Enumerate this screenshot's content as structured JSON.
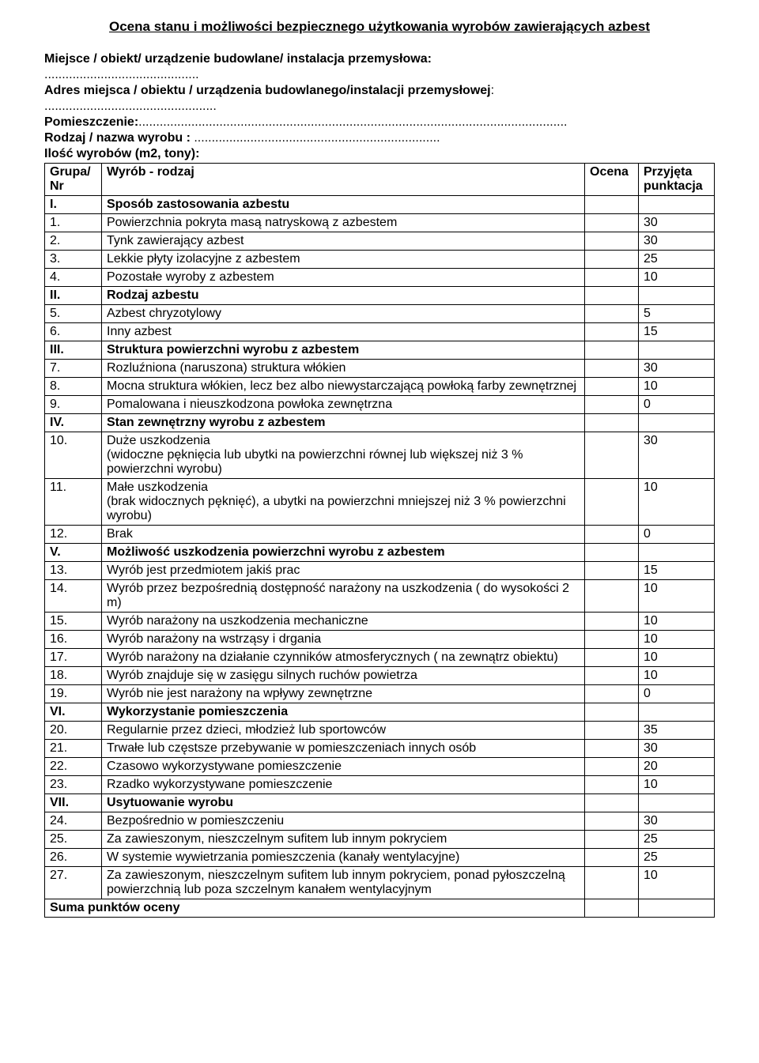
{
  "title": "Ocena stanu i możliwości bezpiecznego użytkowania wyrobów zawierających azbest",
  "meta": {
    "miejsce_label": "Miejsce / obiekt/ urządzenie budowlane/ instalacja przemysłowa:",
    "miejsce_dots": "............................................",
    "adres_label": "Adres miejsca / obiektu / urządzenia budowlanego/instalacji przemysłowej",
    "adres_dots": ":",
    "adres_line_dots": ".................................................",
    "pomieszczenie_label": "Pomieszczenie:",
    "pomieszczenie_dots": "..........................................................................................................................",
    "rodzaj_label": "Rodzaj / nazwa wyrobu : ",
    "rodzaj_dots": "......................................................................",
    "ilosc_label": "Ilość wyrobów (m2, tony):"
  },
  "headers": {
    "c1": "Grupa/\nNr",
    "c2": "Wyrób - rodzaj",
    "c3": "Ocena",
    "c4": "Przyjęta punktacja"
  },
  "rows": [
    {
      "type": "section",
      "nr": "I.",
      "text": "Sposób zastosowania azbestu"
    },
    {
      "type": "item",
      "nr": "1.",
      "text": "Powierzchnia pokryta masą natryskową z azbestem",
      "pts": "30"
    },
    {
      "type": "item",
      "nr": "2.",
      "text": "Tynk zawierający azbest",
      "pts": "30"
    },
    {
      "type": "item",
      "nr": "3.",
      "text": "Lekkie płyty izolacyjne z   azbestem",
      "pts": "25"
    },
    {
      "type": "item",
      "nr": "4.",
      "text": "Pozostałe wyroby z azbestem",
      "pts": "10"
    },
    {
      "type": "section",
      "nr": "II.",
      "text": "Rodzaj azbestu"
    },
    {
      "type": "item",
      "nr": "5.",
      "text": "Azbest chryzotylowy",
      "pts": "5"
    },
    {
      "type": "item",
      "nr": "6.",
      "text": "Inny azbest",
      "pts": "15"
    },
    {
      "type": "section",
      "nr": "III.",
      "text": "Struktura powierzchni wyrobu z azbestem"
    },
    {
      "type": "item",
      "nr": "7.",
      "text": "Rozluźniona (naruszona) struktura włókien",
      "pts": "30"
    },
    {
      "type": "item",
      "nr": "8.",
      "text": "Mocna struktura włókien, lecz bez albo niewystarczającą powłoką farby zewnętrznej",
      "pts": "10"
    },
    {
      "type": "item",
      "nr": "9.",
      "text": "Pomalowana i nieuszkodzona powłoka zewnętrzna",
      "pts": "0"
    },
    {
      "type": "section",
      "nr": "IV.",
      "text": "Stan zewnętrzny wyrobu z azbestem"
    },
    {
      "type": "item",
      "nr": "10.",
      "text": "Duże uszkodzenia\n(widoczne pęknięcia lub ubytki na powierzchni równej lub większej niż                    3 % powierzchni wyrobu)",
      "pts": "30"
    },
    {
      "type": "item",
      "nr": "11.",
      "text": "Małe uszkodzenia\n(brak widocznych pęknięć), a ubytki na powierzchni mniejszej niż 3 % powierzchni wyrobu)",
      "pts": "10"
    },
    {
      "type": "item",
      "nr": "12.",
      "text": "Brak",
      "pts": "0"
    },
    {
      "type": "section",
      "nr": "V.",
      "text": "Możliwość uszkodzenia powierzchni wyrobu z azbestem"
    },
    {
      "type": "item",
      "nr": "13.",
      "text": "Wyrób jest przedmiotem jakiś prac",
      "pts": "15"
    },
    {
      "type": "item",
      "nr": "14.",
      "text": "Wyrób przez  bezpośrednią dostępność narażony na uszkodzenia ( do wysokości 2 m)",
      "pts": "10"
    },
    {
      "type": "item",
      "nr": "15.",
      "text": "Wyrób narażony na uszkodzenia mechaniczne",
      "pts": "10"
    },
    {
      "type": "item",
      "nr": "16.",
      "text": "Wyrób narażony na wstrząsy i drgania",
      "pts": "10"
    },
    {
      "type": "item",
      "nr": "17.",
      "text": "Wyrób narażony na działanie czynników atmosferycznych ( na zewnątrz obiektu)",
      "pts": "10"
    },
    {
      "type": "item",
      "nr": "18.",
      "text": "Wyrób znajduje się w zasięgu silnych ruchów powietrza",
      "pts": "10"
    },
    {
      "type": "item",
      "nr": "19.",
      "text": "Wyrób nie jest narażony na wpływy zewnętrzne",
      "pts": "0"
    },
    {
      "type": "section",
      "nr": "VI.",
      "text": "Wykorzystanie pomieszczenia"
    },
    {
      "type": "item",
      "nr": "20.",
      "text": "Regularnie przez dzieci, młodzież lub sportowców",
      "pts": "35"
    },
    {
      "type": "item",
      "nr": "21.",
      "text": "Trwałe lub częstsze przebywanie w pomieszczeniach innych osób",
      "pts": "30"
    },
    {
      "type": "item",
      "nr": "22.",
      "text": "Czasowo wykorzystywane pomieszczenie",
      "pts": "20"
    },
    {
      "type": "item",
      "nr": "23.",
      "text": "Rzadko wykorzystywane pomieszczenie",
      "pts": "10"
    },
    {
      "type": "section",
      "nr": "VII.",
      "text": "Usytuowanie wyrobu"
    },
    {
      "type": "item",
      "nr": "24.",
      "text": "Bezpośrednio w pomieszczeniu",
      "pts": "30"
    },
    {
      "type": "item",
      "nr": "25.",
      "text": "Za zawieszonym, nieszczelnym sufitem lub innym pokryciem",
      "pts": "25"
    },
    {
      "type": "item",
      "nr": "26.",
      "text": "W systemie wywietrzania pomieszczenia (kanały wentylacyjne)",
      "pts": "25"
    },
    {
      "type": "item",
      "nr": "27.",
      "text": "Za zawieszonym, nieszczelnym sufitem lub innym pokryciem, ponad pyłoszczelną powierzchnią lub poza szczelnym kanałem wentylacyjnym",
      "pts": "10"
    }
  ],
  "sum_label": "Suma punktów oceny"
}
